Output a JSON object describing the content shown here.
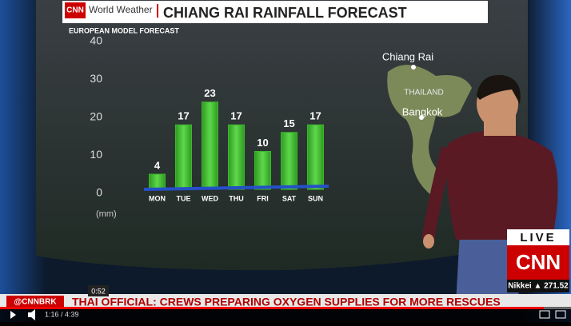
{
  "chart_data": {
    "type": "bar",
    "title": "CHIANG RAI RAINFALL FORECAST",
    "subtitle": "EUROPEAN MODEL FORECAST",
    "categories": [
      "MON",
      "TUE",
      "WED",
      "THU",
      "FRI",
      "SAT",
      "SUN"
    ],
    "values": [
      4,
      17,
      23,
      17,
      10,
      15,
      17
    ],
    "color": "#3cb82c",
    "ylim": [
      0,
      40
    ],
    "yticks": [
      0,
      10,
      20,
      30,
      40
    ],
    "y_label": "(mm)",
    "grid": false
  },
  "broadcast": {
    "logo": "CNN",
    "program": "World Weather",
    "map_labels": [
      "Chiang Rai",
      "THAILAND",
      "Bangkok"
    ],
    "live": "LIVE",
    "channel": "CNN",
    "market": "Nikkei ▲ 271.52",
    "ticker_source": "@CNNBRK",
    "ticker": "THAI OFFICIAL: CREWS PREPARING OXYGEN SUPPLIES FOR MORE RESCUES"
  },
  "player": {
    "hover_time": "0:52",
    "time": "1:16 / 4:39"
  }
}
